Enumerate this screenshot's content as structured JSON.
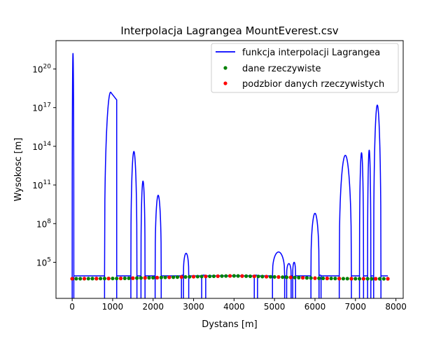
{
  "chart_data": {
    "type": "line",
    "title": "Interpolacja Lagrangea MountEverest.csv",
    "xlabel": "Dystans [m]",
    "ylabel": "Wysokosc [m]",
    "xlim": [
      -400,
      8180
    ],
    "ylim_log10": [
      2.2,
      22.2
    ],
    "y_scale": "log",
    "grid": false,
    "legend_placement": "top-right",
    "x_ticks": [
      0,
      1000,
      2000,
      3000,
      4000,
      5000,
      6000,
      7000,
      8000
    ],
    "x_tick_labels": [
      "0",
      "1000",
      "2000",
      "3000",
      "4000",
      "5000",
      "6000",
      "7000",
      "8000"
    ],
    "y_ticks_log10": [
      5,
      8,
      11,
      14,
      17,
      20
    ],
    "y_tick_labels": [
      {
        "base": "10",
        "exp": "5"
      },
      {
        "base": "10",
        "exp": "8"
      },
      {
        "base": "10",
        "exp": "11"
      },
      {
        "base": "10",
        "exp": "14"
      },
      {
        "base": "10",
        "exp": "17"
      },
      {
        "base": "10",
        "exp": "20"
      }
    ],
    "series": [
      {
        "name": "funkcja interpolacji Lagrangea",
        "kind": "line",
        "color": "#0000ff",
        "x_range": [
          0,
          7800
        ],
        "baseline_m": 8800,
        "humps": [
          {
            "x": [
              0,
              40
            ],
            "peak_log10": 21.2
          },
          {
            "x": [
              800,
              1100
            ],
            "peak_log10": 18.2,
            "right_log10": 17.6
          },
          {
            "x": [
              1450,
              1600
            ],
            "peak_log10": 13.6
          },
          {
            "x": [
              1700,
              1800
            ],
            "peak_log10": 11.3
          },
          {
            "x": [
              2050,
              2200
            ],
            "peak_log10": 10.2
          },
          {
            "x": [
              2700,
              2750
            ],
            "peak_log10": 4.0
          },
          {
            "x": [
              2750,
              2880
            ],
            "peak_log10": 5.7
          },
          {
            "x": [
              3200,
              3300
            ],
            "peak_log10": 4.0
          },
          {
            "x": [
              4500,
              4580
            ],
            "peak_log10": 4.0
          },
          {
            "x": [
              4950,
              5250
            ],
            "peak_log10": 5.8
          },
          {
            "x": [
              5300,
              5410
            ],
            "peak_log10": 4.9
          },
          {
            "x": [
              5450,
              5520
            ],
            "peak_log10": 5.0
          },
          {
            "x": [
              5900,
              6100
            ],
            "peak_log10": 8.8
          },
          {
            "x": [
              6100,
              6150
            ],
            "peak_log10": 4.0
          },
          {
            "x": [
              6600,
              6900
            ],
            "peak_log10": 13.3
          },
          {
            "x": [
              7100,
              7200
            ],
            "peak_log10": 13.5
          },
          {
            "x": [
              7300,
              7380
            ],
            "peak_log10": 13.7
          },
          {
            "x": [
              7450,
              7630
            ],
            "peak_log10": 17.2
          }
        ]
      },
      {
        "name": "dane rzeczywiste",
        "kind": "scatter",
        "color": "#008000",
        "x": [
          0,
          100,
          200,
          300,
          400,
          500,
          600,
          700,
          800,
          900,
          1000,
          1100,
          1200,
          1300,
          1400,
          1500,
          1600,
          1700,
          1800,
          1900,
          2000,
          2100,
          2200,
          2300,
          2400,
          2500,
          2600,
          2700,
          2800,
          2900,
          3000,
          3100,
          3200,
          3300,
          3400,
          3500,
          3600,
          3700,
          3800,
          3900,
          4000,
          4100,
          4200,
          4300,
          4400,
          4500,
          4600,
          4700,
          4800,
          4900,
          5000,
          5100,
          5200,
          5300,
          5400,
          5500,
          5600,
          5700,
          5800,
          5900,
          6000,
          6100,
          6200,
          6300,
          6400,
          6500,
          6600,
          6700,
          6800,
          6900,
          7000,
          7100,
          7200,
          7300,
          7400,
          7500,
          7600,
          7700,
          7800
        ],
        "y": [
          5300,
          5350,
          5360,
          5380,
          5400,
          5420,
          5450,
          5480,
          5500,
          5520,
          5550,
          5580,
          5620,
          5680,
          5760,
          5850,
          5950,
          6050,
          6150,
          6260,
          6370,
          6480,
          6590,
          6700,
          6820,
          6950,
          7080,
          7210,
          7340,
          7470,
          7600,
          7730,
          7860,
          7990,
          8120,
          8250,
          8380,
          8500,
          8620,
          8750,
          8848,
          8700,
          8550,
          8400,
          8250,
          8100,
          7950,
          7800,
          7650,
          7500,
          7350,
          7200,
          7050,
          6900,
          6750,
          6600,
          6450,
          6300,
          6150,
          6000,
          5850,
          5750,
          5650,
          5600,
          5550,
          5500,
          5450,
          5400,
          5380,
          5350,
          5330,
          5310,
          5300,
          5290,
          5280,
          5270,
          5260,
          5250,
          5250
        ]
      },
      {
        "name": "podzbior danych rzeczywistych",
        "kind": "scatter",
        "color": "#ff0000",
        "x": [
          0,
          300,
          600,
          900,
          1200,
          1500,
          1800,
          2100,
          2400,
          2700,
          3000,
          3300,
          3600,
          3900,
          4200,
          4500,
          4800,
          5100,
          5400,
          5700,
          6000,
          6300,
          6600,
          6900,
          7200,
          7500,
          7800
        ],
        "y": [
          5300,
          5380,
          5450,
          5520,
          5620,
          5850,
          6150,
          6480,
          6820,
          7210,
          7600,
          7990,
          8380,
          8750,
          8550,
          8100,
          7650,
          7200,
          6750,
          6300,
          5850,
          5600,
          5450,
          5350,
          5300,
          5270,
          5250
        ]
      }
    ]
  }
}
